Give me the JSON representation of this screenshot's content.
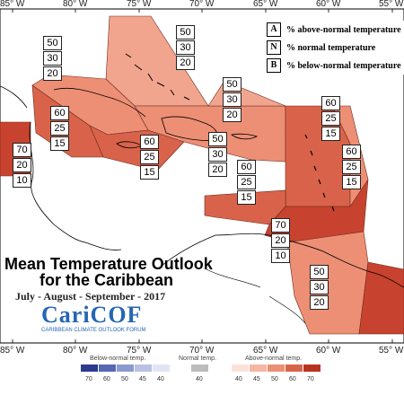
{
  "longitudes": [
    "85° W",
    "80° W",
    "75° W",
    "70° W",
    "65° W",
    "60° W",
    "55° W"
  ],
  "legend": {
    "keys": [
      {
        "key": "A",
        "text": "% above-normal temperature"
      },
      {
        "key": "N",
        "text": "% normal temperature"
      },
      {
        "key": "B",
        "text": "% below-normal temperature"
      }
    ]
  },
  "title": {
    "line1": "Mean Temperature Outlook",
    "line2": "for the Caribbean",
    "subtitle": "July - August - September - 2017"
  },
  "logo": {
    "name": "CariCOF",
    "tagline": "CARIBBEAN CLIMATE OUTLOOK FORUM"
  },
  "regions": [
    {
      "name": "bahamas",
      "values": [
        "50",
        "30",
        "20"
      ],
      "color": "#f2a58e"
    },
    {
      "name": "cuba",
      "values": [
        "50",
        "30",
        "20"
      ],
      "color": "#ed8f75"
    },
    {
      "name": "belize",
      "values": [
        "70",
        "20",
        "10"
      ],
      "color": "#c8432f"
    },
    {
      "name": "cayman",
      "values": [
        "60",
        "25",
        "15"
      ],
      "color": "#d9634a"
    },
    {
      "name": "jamaica",
      "values": [
        "60",
        "25",
        "15"
      ],
      "color": "#d9634a"
    },
    {
      "name": "hispaniola",
      "values": [
        "50",
        "30",
        "20"
      ],
      "color": "#ed8f75"
    },
    {
      "name": "turks-caicos",
      "values": [
        "50",
        "30",
        "20"
      ],
      "color": "#f2a58e"
    },
    {
      "name": "leeward-islands",
      "values": [
        "60",
        "25",
        "15"
      ],
      "color": "#d9634a"
    },
    {
      "name": "windward-islands",
      "values": [
        "60",
        "25",
        "15"
      ],
      "color": "#d9634a"
    },
    {
      "name": "puerto-rico",
      "values": [
        "60",
        "25",
        "15"
      ],
      "color": "#d9634a"
    },
    {
      "name": "trinidad",
      "values": [
        "70",
        "20",
        "10"
      ],
      "color": "#c8432f"
    },
    {
      "name": "guyana",
      "values": [
        "50",
        "30",
        "20"
      ],
      "color": "#ed8f75"
    }
  ],
  "scale": {
    "below_label": "Below-normal temp.",
    "normal_label": "Normal temp.",
    "above_label": "Above-normal temp.",
    "below_ticks": [
      "70",
      "60",
      "50",
      "45",
      "40"
    ],
    "normal_ticks": [
      "40"
    ],
    "above_ticks": [
      "40",
      "45",
      "50",
      "60",
      "70"
    ],
    "below_colors": [
      "#2b3b8f",
      "#5468b5",
      "#8c9ad0",
      "#b9c1e3",
      "#e1e5f3"
    ],
    "normal_color": "#bdbdbd",
    "above_colors": [
      "#fbe2d8",
      "#f5b7a2",
      "#ed8f75",
      "#d9634a",
      "#b8331f"
    ]
  }
}
